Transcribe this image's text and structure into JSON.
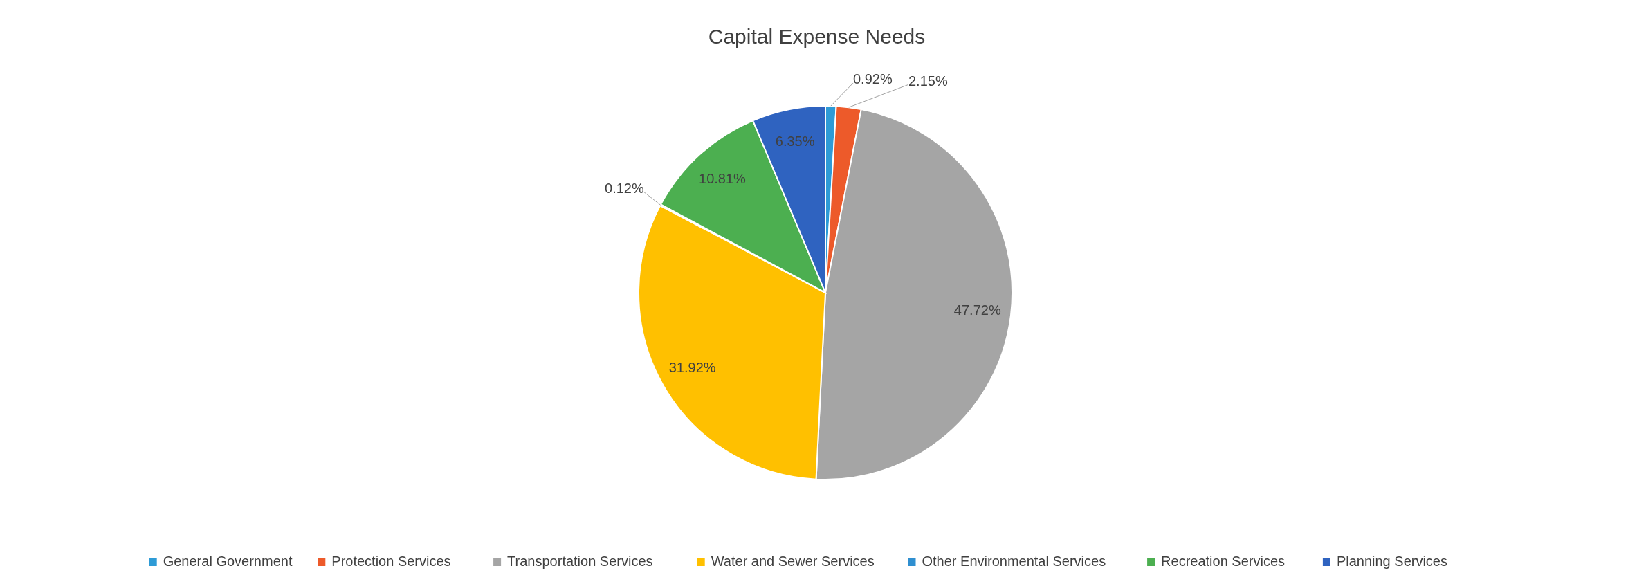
{
  "chart_data": {
    "type": "pie",
    "title": "Capital Expense Needs",
    "categories": [
      "General Government",
      "Protection Services",
      "Transportation Services",
      "Water and Sewer Services",
      "Other Environmental Services",
      "Recreation Services",
      "Planning Services"
    ],
    "values": [
      0.92,
      2.15,
      47.72,
      31.92,
      0.12,
      10.81,
      6.35
    ],
    "value_labels": [
      "0.92%",
      "2.15%",
      "47.72%",
      "31.92%",
      "0.12%",
      "10.81%",
      "6.35%"
    ],
    "colors": [
      "#2e9bd6",
      "#ed5a2a",
      "#a5a5a5",
      "#ffc000",
      "#2f8fd0",
      "#4caf50",
      "#2f63c0"
    ],
    "legend": "bottom"
  }
}
